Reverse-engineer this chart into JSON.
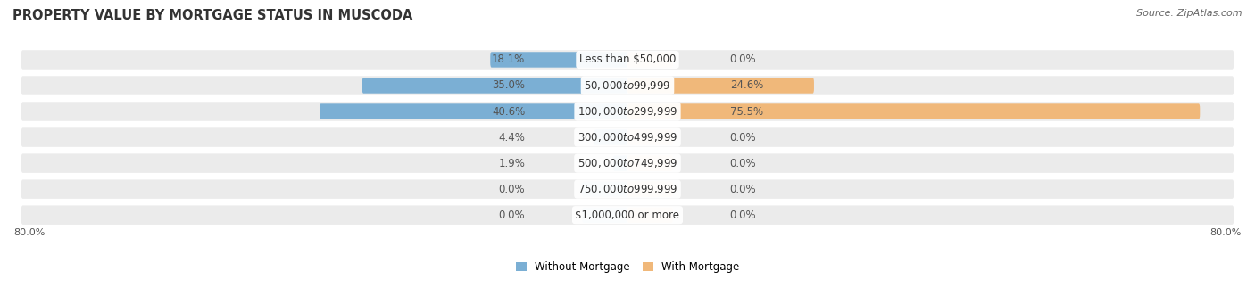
{
  "title": "PROPERTY VALUE BY MORTGAGE STATUS IN MUSCODA",
  "source": "Source: ZipAtlas.com",
  "categories": [
    "Less than $50,000",
    "$50,000 to $99,999",
    "$100,000 to $299,999",
    "$300,000 to $499,999",
    "$500,000 to $749,999",
    "$750,000 to $999,999",
    "$1,000,000 or more"
  ],
  "without_mortgage": [
    18.1,
    35.0,
    40.6,
    4.4,
    1.9,
    0.0,
    0.0
  ],
  "with_mortgage": [
    0.0,
    24.6,
    75.5,
    0.0,
    0.0,
    0.0,
    0.0
  ],
  "color_without": "#7bafd4",
  "color_with": "#f0b87a",
  "stub_without": "#aecce8",
  "stub_with": "#f5d0a9",
  "axis_min": -80.0,
  "axis_max": 80.0,
  "stub_size": 6.0,
  "axis_label_left": "80.0%",
  "axis_label_right": "80.0%",
  "row_bg": "#ebebeb",
  "title_fontsize": 10.5,
  "source_fontsize": 8,
  "label_fontsize": 8.5,
  "cat_label_fontsize": 8.5
}
